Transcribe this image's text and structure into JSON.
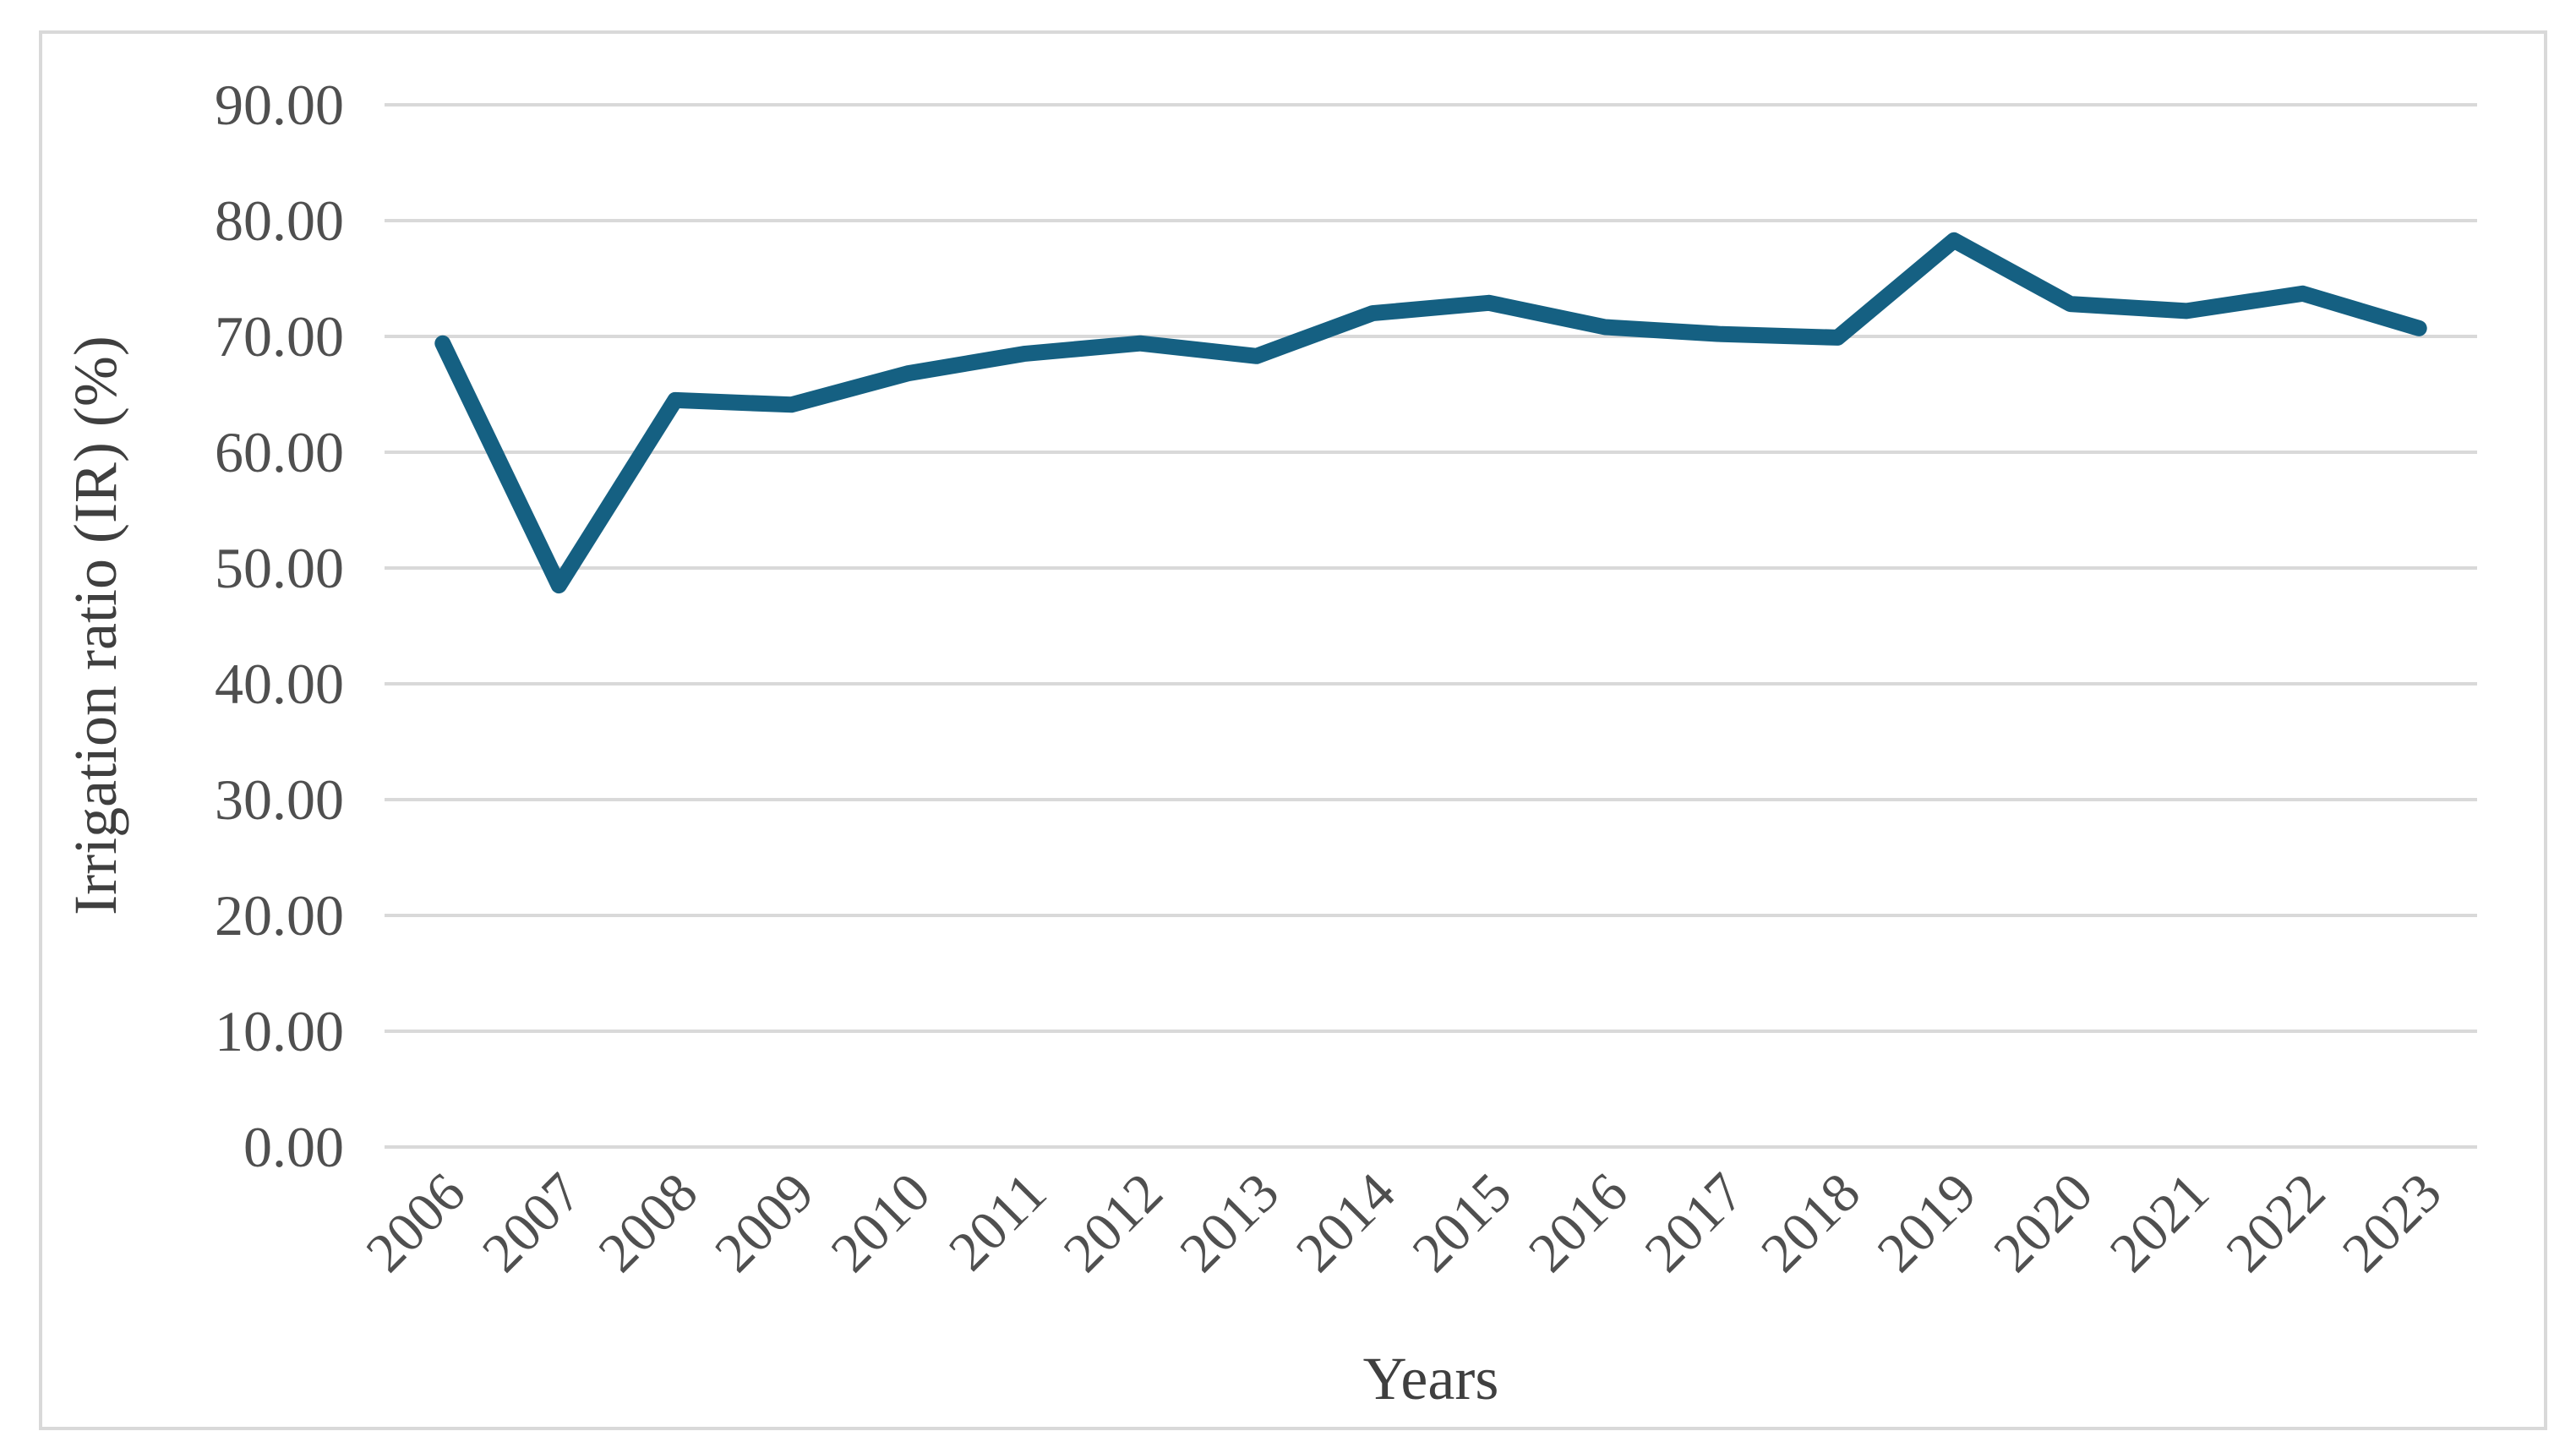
{
  "figure": {
    "background_color": "#ffffff",
    "border_color": "#d9d9d9"
  },
  "chart_data": {
    "type": "line",
    "xlabel": "Years",
    "ylabel": "Irrigation ratio (IR) (%)",
    "categories": [
      "2006",
      "2007",
      "2008",
      "2009",
      "2010",
      "2011",
      "2012",
      "2013",
      "2014",
      "2015",
      "2016",
      "2017",
      "2018",
      "2019",
      "2020",
      "2021",
      "2022",
      "2023"
    ],
    "values": [
      69.4,
      48.5,
      64.5,
      64.1,
      66.8,
      68.5,
      69.4,
      68.3,
      72.0,
      72.9,
      70.8,
      70.2,
      69.9,
      78.3,
      72.8,
      72.2,
      73.7,
      70.7
    ],
    "yticks": [
      "0.00",
      "10.00",
      "20.00",
      "30.00",
      "40.00",
      "50.00",
      "60.00",
      "70.00",
      "80.00",
      "90.00"
    ],
    "ylim": [
      0,
      90
    ],
    "grid": "horizontal",
    "legend": "none",
    "line_color": "#156082",
    "gridline_color": "#d9d9d9",
    "tick_label_color": "#4f4f4f",
    "axis_title_color": "#3f3f3f"
  }
}
